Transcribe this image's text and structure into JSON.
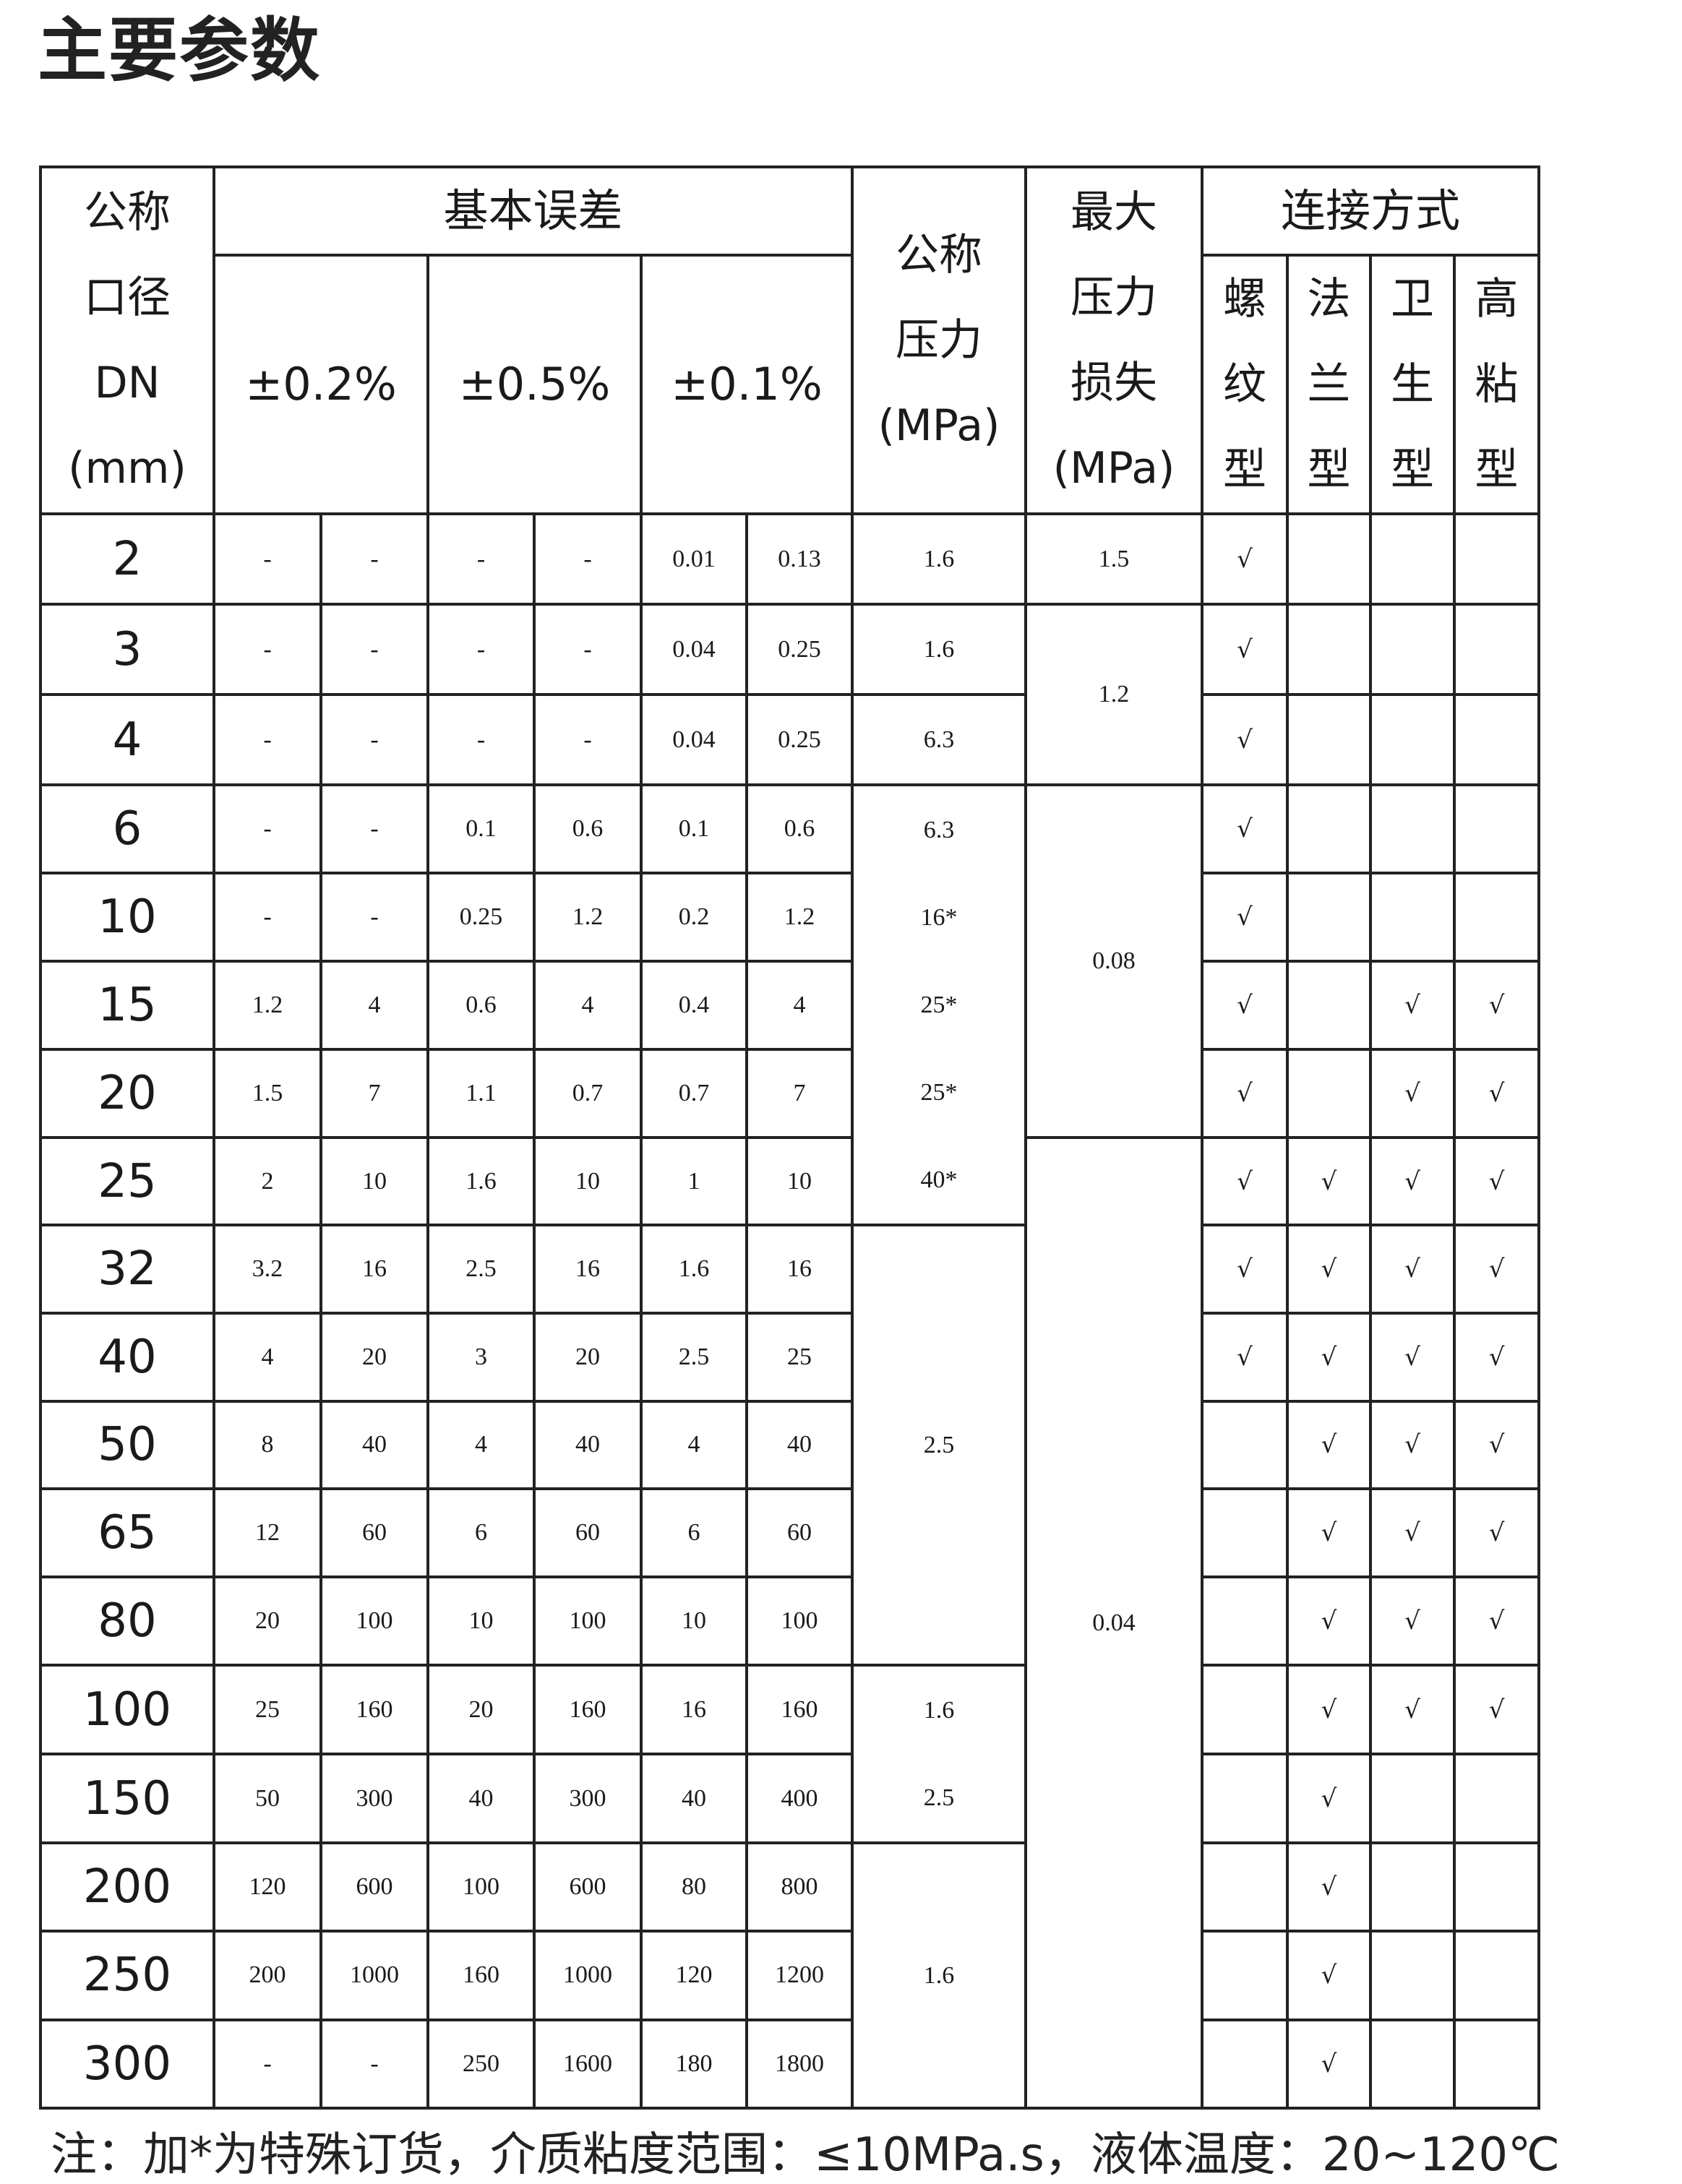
{
  "title": "主要参数",
  "header": {
    "dn": [
      "公称",
      "口径",
      "DN",
      "(mm)"
    ],
    "basic_error": "基本误差",
    "accuracy": [
      "±0.2%",
      "±0.5%",
      "±0.1%"
    ],
    "nominal_pressure": [
      "公称",
      "压力",
      "(MPa)"
    ],
    "max_loss": [
      "最大",
      "压力",
      "损失",
      "(MPa)"
    ],
    "connection": "连接方式",
    "connection_types": [
      [
        "螺",
        "纹",
        "型"
      ],
      [
        "法",
        "兰",
        "型"
      ],
      [
        "卫",
        "生",
        "型"
      ],
      [
        "高",
        "粘",
        "型"
      ]
    ]
  },
  "rows": [
    {
      "dn": "2",
      "errors": [
        "-",
        "-",
        "-",
        "-",
        "0.01",
        "0.13"
      ],
      "conn": [
        "√",
        "",
        "",
        ""
      ]
    },
    {
      "dn": "3",
      "errors": [
        "-",
        "-",
        "-",
        "-",
        "0.04",
        "0.25"
      ],
      "conn": [
        "√",
        "",
        "",
        ""
      ]
    },
    {
      "dn": "4",
      "errors": [
        "-",
        "-",
        "-",
        "-",
        "0.04",
        "0.25"
      ],
      "conn": [
        "√",
        "",
        "",
        ""
      ]
    },
    {
      "dn": "6",
      "errors": [
        "-",
        "-",
        "0.1",
        "0.6",
        "0.1",
        "0.6"
      ],
      "conn": [
        "√",
        "",
        "",
        ""
      ]
    },
    {
      "dn": "10",
      "errors": [
        "-",
        "-",
        "0.25",
        "1.2",
        "0.2",
        "1.2"
      ],
      "conn": [
        "√",
        "",
        "",
        ""
      ]
    },
    {
      "dn": "15",
      "errors": [
        "1.2",
        "4",
        "0.6",
        "4",
        "0.4",
        "4"
      ],
      "conn": [
        "√",
        "",
        "√",
        "√"
      ]
    },
    {
      "dn": "20",
      "errors": [
        "1.5",
        "7",
        "1.1",
        "0.7",
        "0.7",
        "7"
      ],
      "conn": [
        "√",
        "",
        "√",
        "√"
      ]
    },
    {
      "dn": "25",
      "errors": [
        "2",
        "10",
        "1.6",
        "10",
        "1",
        "10"
      ],
      "conn": [
        "√",
        "√",
        "√",
        "√"
      ]
    },
    {
      "dn": "32",
      "errors": [
        "3.2",
        "16",
        "2.5",
        "16",
        "1.6",
        "16"
      ],
      "conn": [
        "√",
        "√",
        "√",
        "√"
      ]
    },
    {
      "dn": "40",
      "errors": [
        "4",
        "20",
        "3",
        "20",
        "2.5",
        "25"
      ],
      "conn": [
        "√",
        "√",
        "√",
        "√"
      ]
    },
    {
      "dn": "50",
      "errors": [
        "8",
        "40",
        "4",
        "40",
        "4",
        "40"
      ],
      "conn": [
        "",
        "√",
        "√",
        "√"
      ]
    },
    {
      "dn": "65",
      "errors": [
        "12",
        "60",
        "6",
        "60",
        "6",
        "60"
      ],
      "conn": [
        "",
        "√",
        "√",
        "√"
      ]
    },
    {
      "dn": "80",
      "errors": [
        "20",
        "100",
        "10",
        "100",
        "10",
        "100"
      ],
      "conn": [
        "",
        "√",
        "√",
        "√"
      ]
    },
    {
      "dn": "100",
      "errors": [
        "25",
        "160",
        "20",
        "160",
        "16",
        "160"
      ],
      "conn": [
        "",
        "√",
        "√",
        "√"
      ]
    },
    {
      "dn": "150",
      "errors": [
        "50",
        "300",
        "40",
        "300",
        "40",
        "400"
      ],
      "conn": [
        "",
        "√",
        "",
        ""
      ]
    },
    {
      "dn": "200",
      "errors": [
        "120",
        "600",
        "100",
        "600",
        "80",
        "800"
      ],
      "conn": [
        "",
        "√",
        "",
        ""
      ]
    },
    {
      "dn": "250",
      "errors": [
        "200",
        "1000",
        "160",
        "1000",
        "120",
        "1200"
      ],
      "conn": [
        "",
        "√",
        "",
        ""
      ]
    },
    {
      "dn": "300",
      "errors": [
        "-",
        "-",
        "250",
        "1600",
        "180",
        "1800"
      ],
      "conn": [
        "",
        "√",
        "",
        ""
      ]
    }
  ],
  "pressure_groups": [
    {
      "span": 1,
      "values": [
        "1.6"
      ]
    },
    {
      "span": 1,
      "values": [
        "1.6"
      ]
    },
    {
      "span": 1,
      "values": [
        "6.3"
      ]
    },
    {
      "span": 5,
      "values": [
        "6.3",
        "16*",
        "25*",
        "25*",
        "40*"
      ]
    },
    {
      "span": 5,
      "values": [
        "2.5"
      ]
    },
    {
      "span": 2,
      "values": [
        "1.6",
        "2.5"
      ]
    },
    {
      "span": 3,
      "values": [
        "1.6"
      ]
    }
  ],
  "loss_groups": [
    {
      "span": 1,
      "values": [
        "1.5"
      ]
    },
    {
      "span": 2,
      "values": [
        "1.2"
      ]
    },
    {
      "span": 4,
      "values": [
        "0.08"
      ]
    },
    {
      "span": 11,
      "values": [
        "0.04"
      ]
    }
  ],
  "note": "注：加*为特殊订货，介质粘度范围：≤10MPa.s，液体温度：20~120℃"
}
